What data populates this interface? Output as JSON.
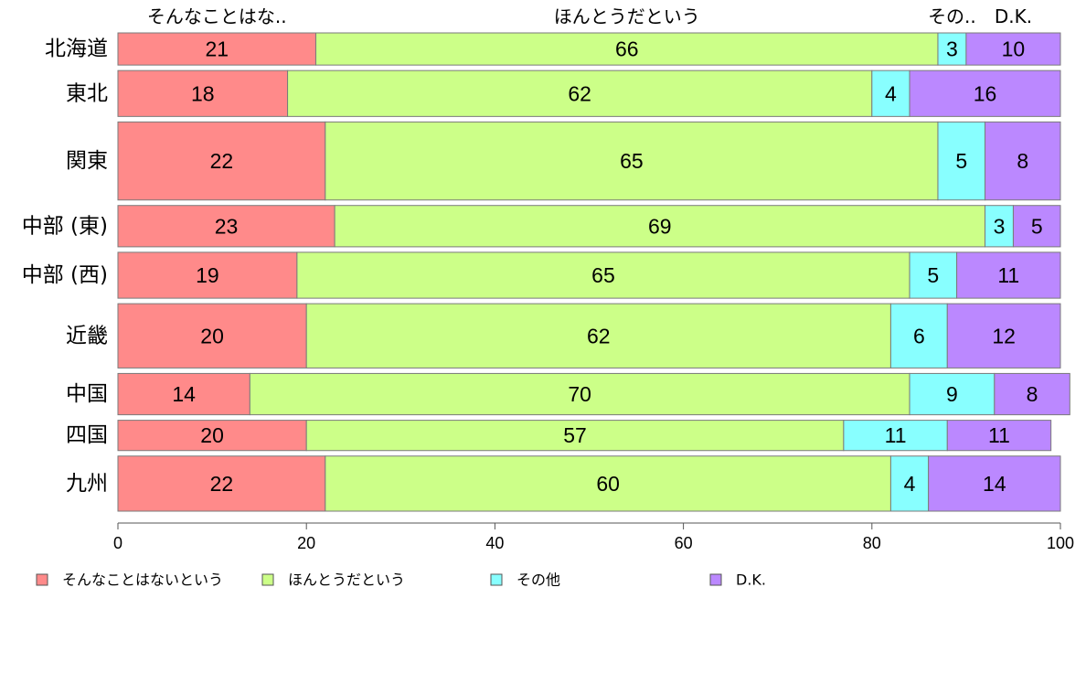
{
  "chart_data": {
    "type": "bar",
    "orientation": "horizontal",
    "stacked": true,
    "proportional_widths": true,
    "xlim": [
      0,
      100
    ],
    "x_ticks": [
      0,
      20,
      40,
      60,
      80,
      100
    ],
    "categories": [
      "北海道",
      "東北",
      "関東",
      "中部 (東)",
      "中部 (西)",
      "近畿",
      "中国",
      "四国",
      "九州"
    ],
    "relative_sizes": [
      0.35,
      0.5,
      0.85,
      0.45,
      0.5,
      0.7,
      0.45,
      0.33,
      0.6
    ],
    "series": [
      {
        "name": "そんなことはないという",
        "color": "#FF8A8A",
        "values": [
          21,
          18,
          22,
          23,
          19,
          20,
          14,
          20,
          22
        ]
      },
      {
        "name": "ほんとうだという",
        "color": "#CCFF88",
        "values": [
          66,
          62,
          65,
          69,
          65,
          62,
          70,
          57,
          60
        ]
      },
      {
        "name": "その他",
        "color": "#88FFFF",
        "values": [
          3,
          4,
          5,
          3,
          5,
          6,
          9,
          11,
          4
        ]
      },
      {
        "name": "D.K.",
        "color": "#BB88FF",
        "values": [
          10,
          16,
          8,
          5,
          11,
          12,
          8,
          11,
          14
        ]
      }
    ],
    "top_labels": [
      "そんなことはな..",
      "ほんとうだという",
      "その..",
      "D.K."
    ],
    "legend_position": "bottom-left",
    "grid": false
  }
}
